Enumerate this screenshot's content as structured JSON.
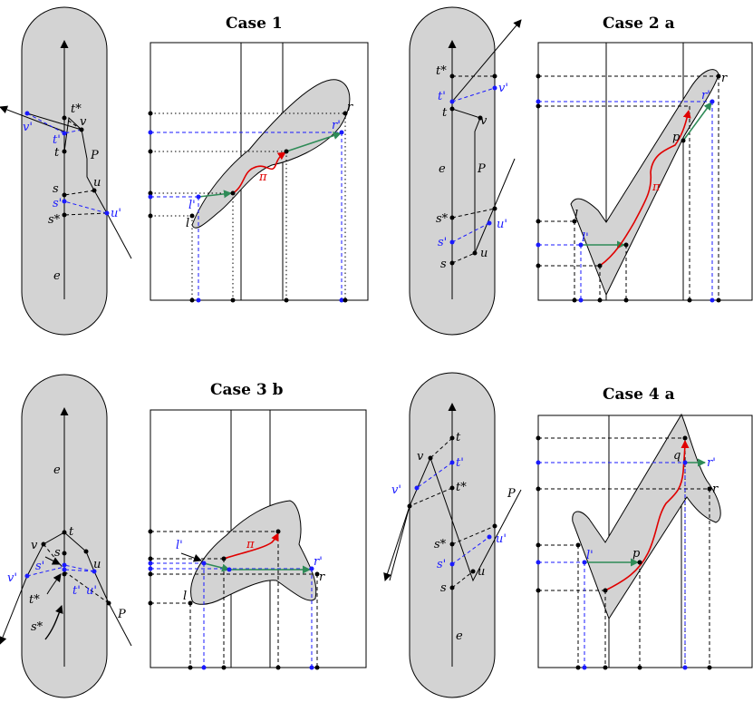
{
  "colors": {
    "blue": "#1a1aff",
    "red": "#e00000",
    "green": "#2e8b57",
    "gray": "#d3d3d3"
  },
  "titles": {
    "case1": "Case 1",
    "case2a": "Case 2 a",
    "case3b": "Case 3 b",
    "case4a": "Case 4 a"
  },
  "labels": {
    "t_star": "t*",
    "t": "t",
    "t_prime": "t'",
    "s_star": "s*",
    "s": "s",
    "s_prime": "s'",
    "v": "v",
    "v_prime": "v'",
    "u": "u",
    "u_prime": "u'",
    "e": "e",
    "P": "P",
    "l": "l",
    "l_prime": "l'",
    "r": "r",
    "r_prime": "r'",
    "p": "p",
    "q": "q",
    "pi": "π"
  }
}
